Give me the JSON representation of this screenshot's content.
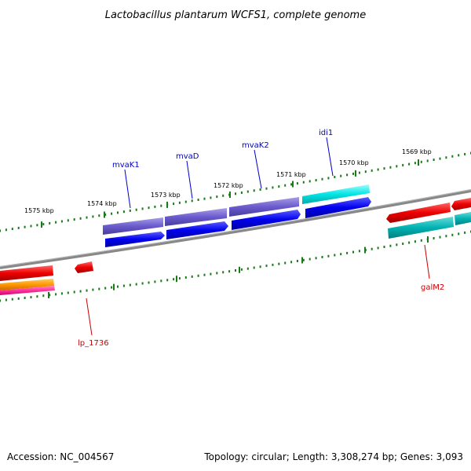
{
  "title": "Lactobacillus plantarum WCFS1, complete genome",
  "footer": {
    "accession": "Accession: NC_004567",
    "summary": "Topology: circular; Length: 3,308,274 bp; Genes: 3,093"
  },
  "scale_labels": [
    "1575 kbp",
    "1574 kbp",
    "1573 kbp",
    "1572 kbp",
    "1571 kbp",
    "1570 kbp",
    "1569 kbp"
  ],
  "gene_labels": {
    "mvaK1": "mvaK1",
    "mvaD": "mvaD",
    "mvaK2": "mvaK2",
    "idi1": "idi1",
    "galM2": "galM2",
    "lp_1736": "lp_1736"
  },
  "colors": {
    "backbone": "#888888",
    "tick": "#1a7a1a",
    "blue_label": "#0000cc",
    "red_label": "#cc0000",
    "violet_feature": "#6a5acd",
    "blue_feature": "#0000ee",
    "cyan_feature": "#00cccc",
    "teal_feature": "#00b2b2",
    "red_feature": "#ee0000",
    "orange_feature": "#ff9900",
    "pink_feature": "#ff3399"
  }
}
